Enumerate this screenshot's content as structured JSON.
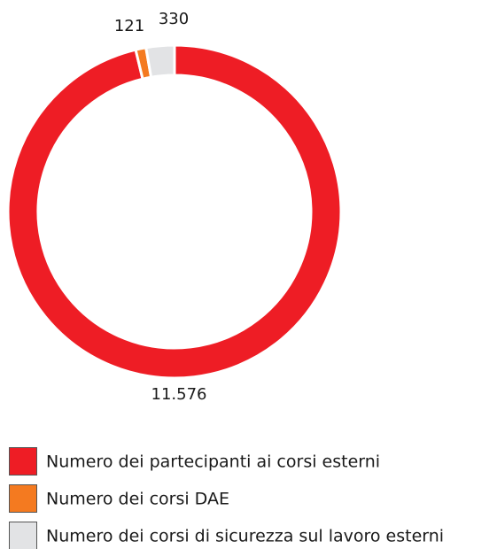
{
  "chart_data": {
    "type": "donut",
    "categories": [
      "Numero dei partecipanti ai corsi esterni",
      "Numero dei corsi DAE",
      "Numero dei corsi di sicurezza sul lavoro esterni"
    ],
    "values": [
      11576,
      121,
      330
    ],
    "value_labels": [
      "11.576",
      "121",
      "330"
    ],
    "colors": [
      "#ee1d25",
      "#f47a20",
      "#e2e3e5"
    ]
  }
}
